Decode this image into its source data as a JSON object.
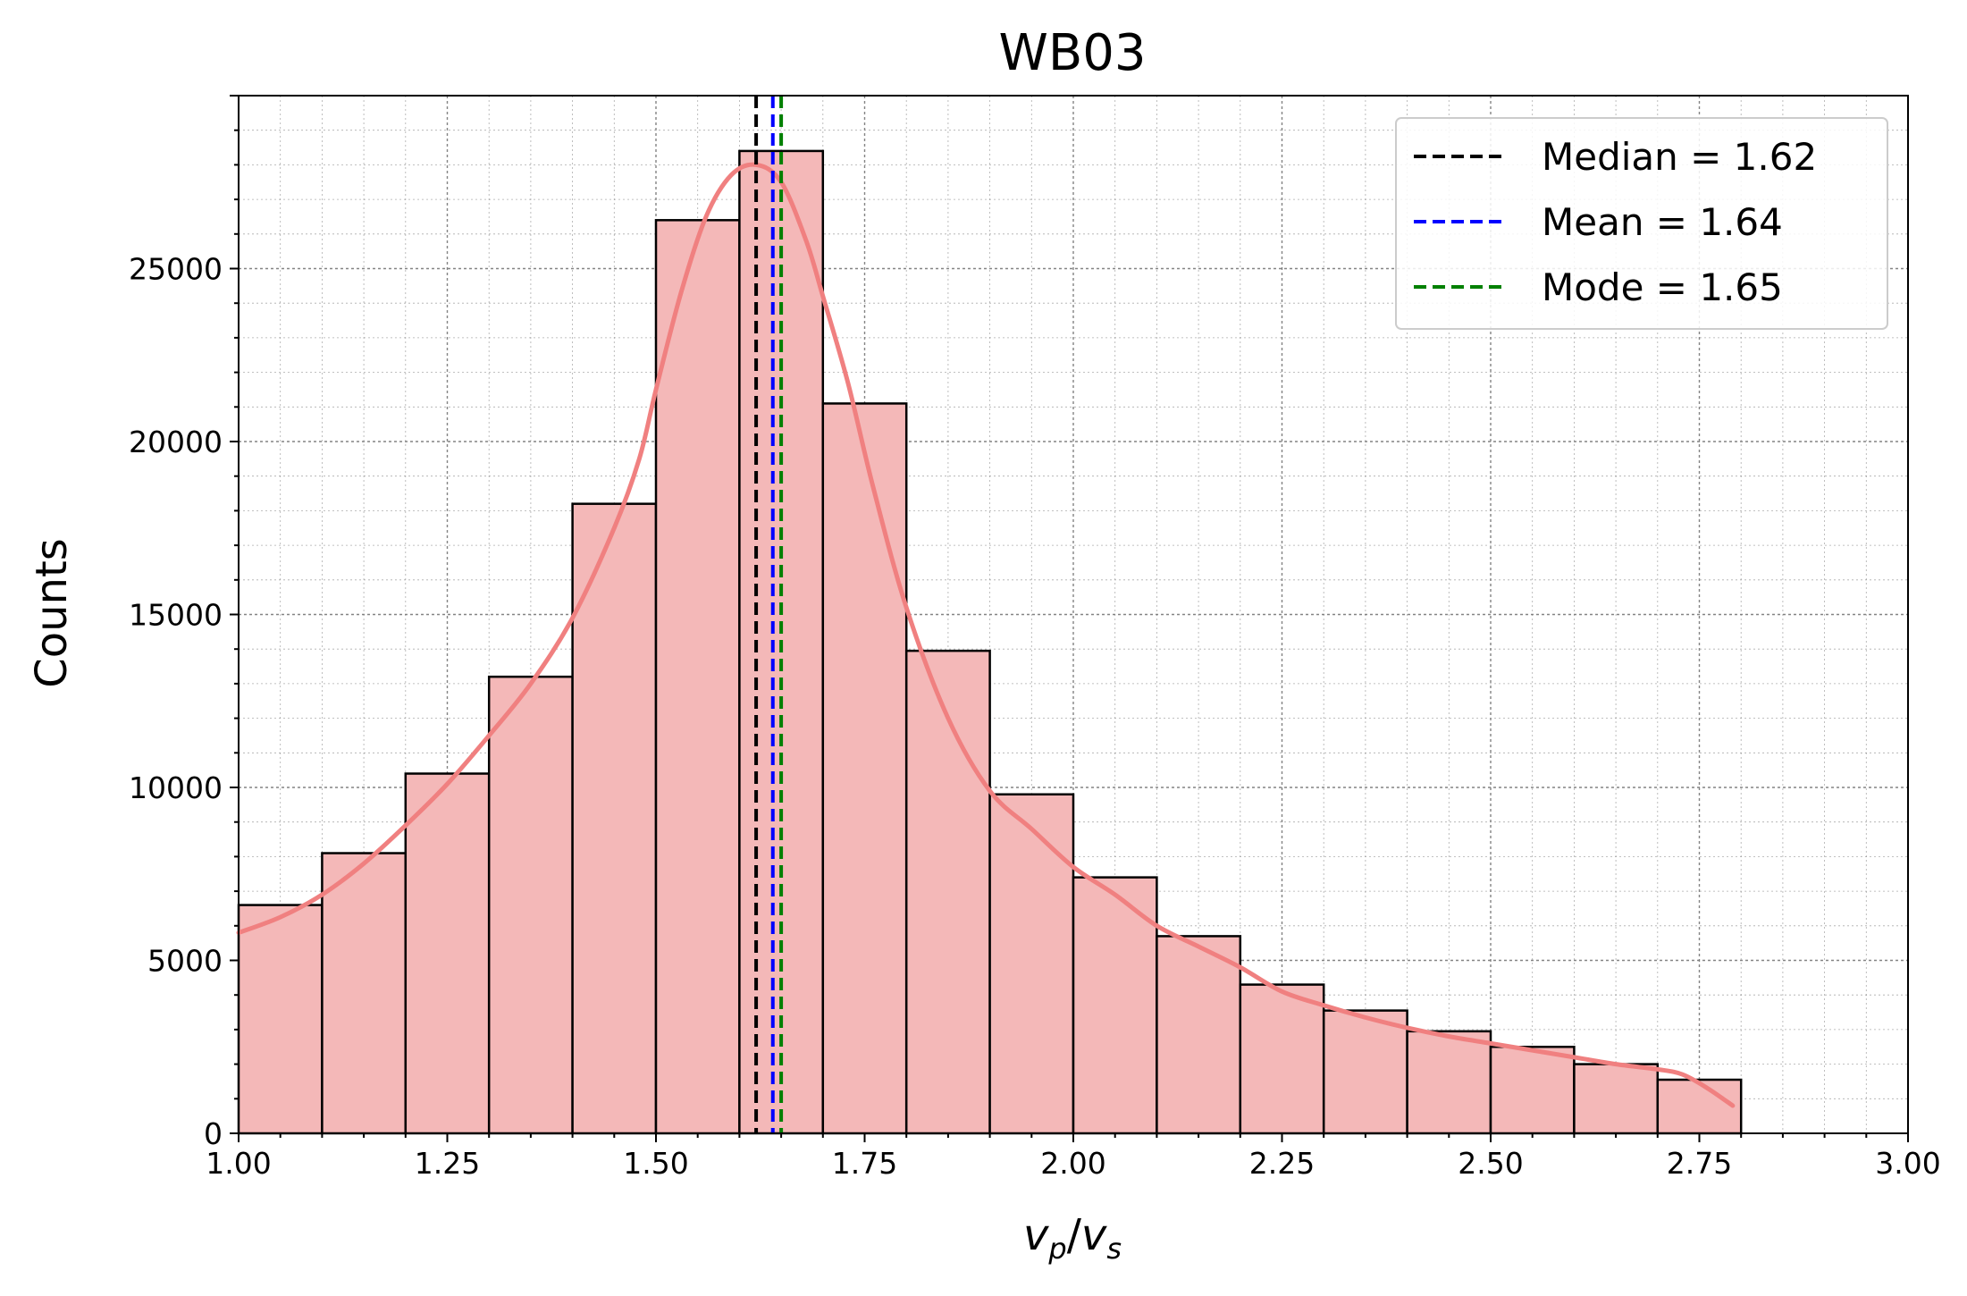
{
  "chart_data": {
    "type": "bar",
    "title": "WB03",
    "xlabel": "v_p/v_s",
    "xlabel_parts": {
      "v1": "v",
      "s1": "p",
      "slash": "/",
      "v2": "v",
      "s2": "s"
    },
    "ylabel": "Counts",
    "xlim": [
      1.0,
      3.0
    ],
    "ylim": [
      0,
      30000
    ],
    "xticks": [
      "1.00",
      "1.25",
      "1.50",
      "1.75",
      "2.00",
      "2.25",
      "2.50",
      "2.75",
      "3.00"
    ],
    "yticks": [
      "0",
      "5000",
      "10000",
      "15000",
      "20000",
      "25000"
    ],
    "bin_width": 0.1,
    "bins": [
      {
        "x0": 1.0,
        "x1": 1.1,
        "count": 6600
      },
      {
        "x0": 1.1,
        "x1": 1.2,
        "count": 8100
      },
      {
        "x0": 1.2,
        "x1": 1.3,
        "count": 10400
      },
      {
        "x0": 1.3,
        "x1": 1.4,
        "count": 13200
      },
      {
        "x0": 1.4,
        "x1": 1.5,
        "count": 18200
      },
      {
        "x0": 1.5,
        "x1": 1.6,
        "count": 26400
      },
      {
        "x0": 1.6,
        "x1": 1.7,
        "count": 28400
      },
      {
        "x0": 1.7,
        "x1": 1.8,
        "count": 21100
      },
      {
        "x0": 1.8,
        "x1": 1.9,
        "count": 13950
      },
      {
        "x0": 1.9,
        "x1": 2.0,
        "count": 9800
      },
      {
        "x0": 2.0,
        "x1": 2.1,
        "count": 7400
      },
      {
        "x0": 2.1,
        "x1": 2.2,
        "count": 5700
      },
      {
        "x0": 2.2,
        "x1": 2.3,
        "count": 4300
      },
      {
        "x0": 2.3,
        "x1": 2.4,
        "count": 3550
      },
      {
        "x0": 2.4,
        "x1": 2.5,
        "count": 2950
      },
      {
        "x0": 2.5,
        "x1": 2.6,
        "count": 2500
      },
      {
        "x0": 2.6,
        "x1": 2.7,
        "count": 2000
      },
      {
        "x0": 2.7,
        "x1": 2.8,
        "count": 1550
      }
    ],
    "kde": [
      [
        1.0,
        5800
      ],
      [
        1.05,
        6250
      ],
      [
        1.1,
        6900
      ],
      [
        1.15,
        7800
      ],
      [
        1.2,
        8900
      ],
      [
        1.25,
        10100
      ],
      [
        1.3,
        11500
      ],
      [
        1.35,
        13000
      ],
      [
        1.4,
        14900
      ],
      [
        1.45,
        17500
      ],
      [
        1.48,
        19500
      ],
      [
        1.5,
        21500
      ],
      [
        1.53,
        24300
      ],
      [
        1.56,
        26500
      ],
      [
        1.59,
        27700
      ],
      [
        1.62,
        28000
      ],
      [
        1.65,
        27500
      ],
      [
        1.68,
        25800
      ],
      [
        1.7,
        24200
      ],
      [
        1.73,
        21700
      ],
      [
        1.76,
        18700
      ],
      [
        1.8,
        15200
      ],
      [
        1.85,
        12000
      ],
      [
        1.9,
        9900
      ],
      [
        1.95,
        8800
      ],
      [
        2.0,
        7700
      ],
      [
        2.05,
        6900
      ],
      [
        2.1,
        6000
      ],
      [
        2.15,
        5400
      ],
      [
        2.2,
        4800
      ],
      [
        2.25,
        4100
      ],
      [
        2.3,
        3700
      ],
      [
        2.35,
        3350
      ],
      [
        2.4,
        3050
      ],
      [
        2.45,
        2800
      ],
      [
        2.5,
        2600
      ],
      [
        2.55,
        2400
      ],
      [
        2.6,
        2200
      ],
      [
        2.65,
        2000
      ],
      [
        2.7,
        1850
      ],
      [
        2.73,
        1700
      ],
      [
        2.76,
        1300
      ],
      [
        2.79,
        800
      ]
    ],
    "colors": {
      "bar_fill": "#f4b8b8",
      "bar_edge": "#000000",
      "kde_line": "#f08080",
      "grid": "#777777"
    },
    "grid": true,
    "minor_grid": true,
    "legend_position": "top-right",
    "reference_lines": [
      {
        "label": "Median = 1.62",
        "x": 1.62,
        "color": "#000000"
      },
      {
        "label": "Mean = 1.64",
        "x": 1.64,
        "color": "#0000ff"
      },
      {
        "label": "Mode = 1.65",
        "x": 1.65,
        "color": "#008000"
      }
    ]
  }
}
